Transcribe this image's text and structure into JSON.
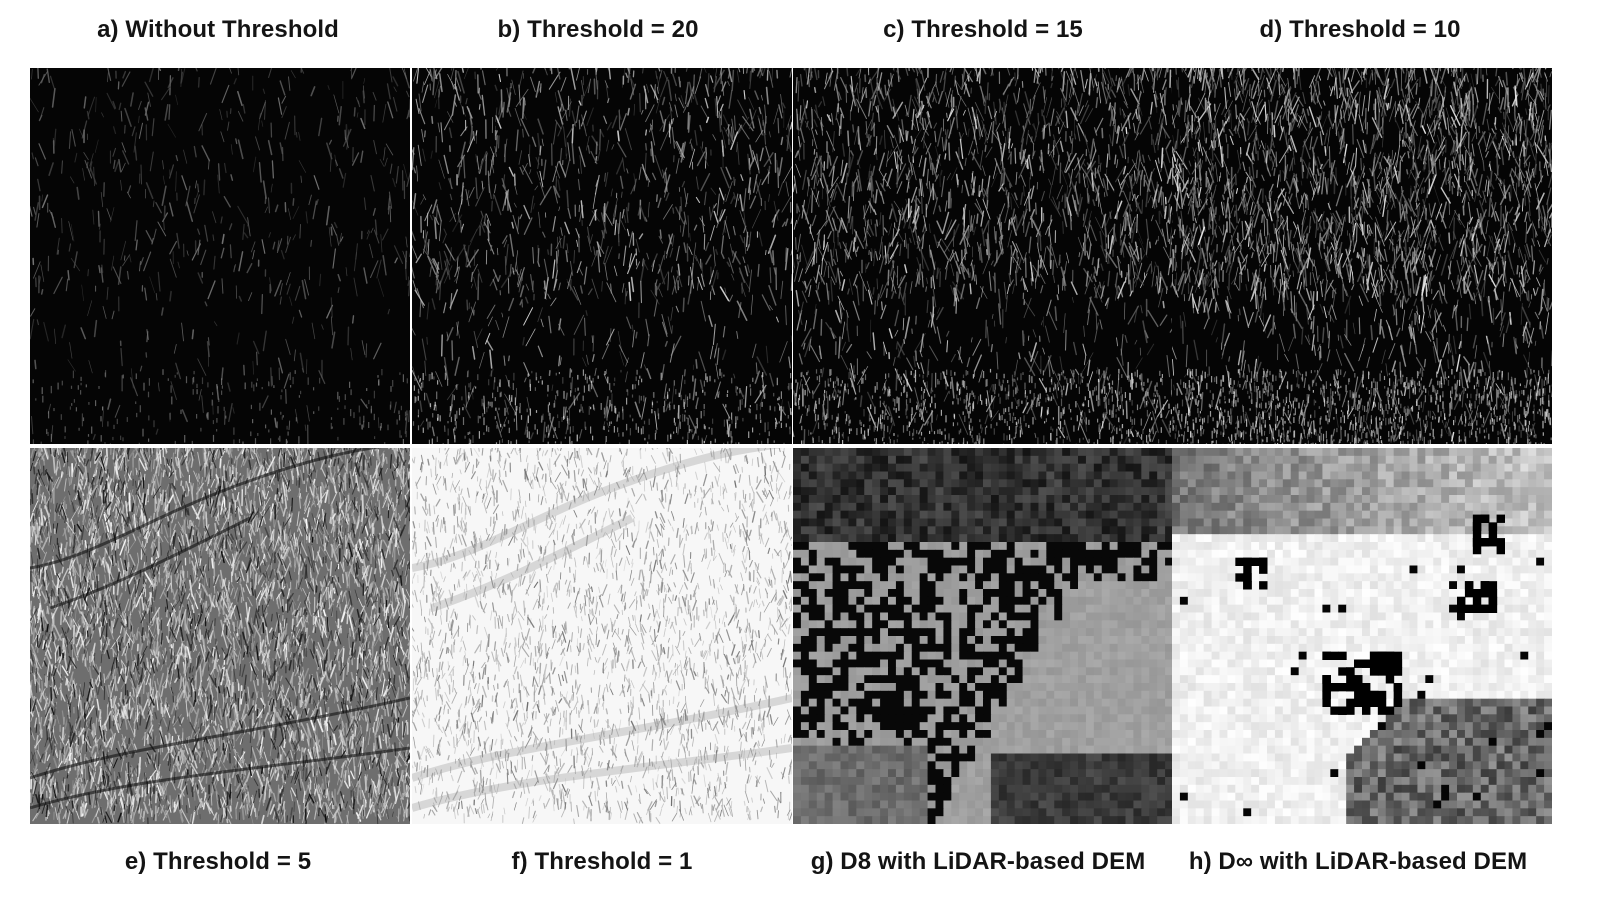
{
  "figure": {
    "panels": [
      {
        "id": "a",
        "title": "a) Without Threshold",
        "tone": "dark",
        "density": 0.35
      },
      {
        "id": "b",
        "title": "b) Threshold = 20",
        "tone": "dark",
        "density": 0.55
      },
      {
        "id": "c",
        "title": "c) Threshold = 15",
        "tone": "dark",
        "density": 0.75
      },
      {
        "id": "d",
        "title": "d) Threshold = 10",
        "tone": "dark",
        "density": 0.95
      },
      {
        "id": "e",
        "title": "e) Threshold = 5",
        "tone": "mixed",
        "density": 1.0
      },
      {
        "id": "f",
        "title": "f) Threshold = 1",
        "tone": "light",
        "density": 1.0
      },
      {
        "id": "g",
        "title": "g) D8 with LiDAR-based DEM",
        "tone": "blocky-dark",
        "density": 1.0
      },
      {
        "id": "h",
        "title": "h) D∞ with LiDAR-based DEM",
        "tone": "blocky-light",
        "density": 1.0
      }
    ]
  }
}
